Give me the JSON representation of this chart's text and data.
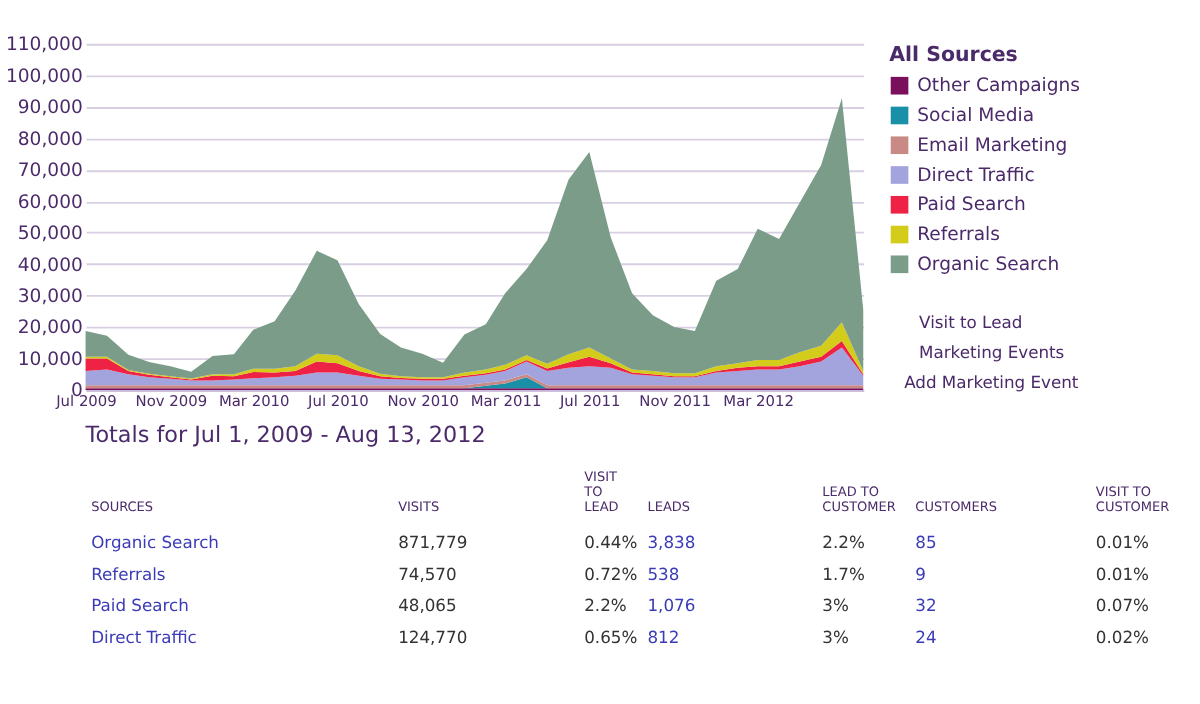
{
  "chart_data": {
    "type": "area",
    "stacked": true,
    "legend": "right",
    "legend_title": "All Sources",
    "grid": "y",
    "x": [
      "2009-07",
      "2009-08",
      "2009-09",
      "2009-10",
      "2009-11",
      "2009-12",
      "2010-01",
      "2010-02",
      "2010-03",
      "2010-04",
      "2010-05",
      "2010-06",
      "2010-07",
      "2010-08",
      "2010-09",
      "2010-10",
      "2010-11",
      "2010-12",
      "2011-01",
      "2011-02",
      "2011-03",
      "2011-04",
      "2011-05",
      "2011-06",
      "2011-07",
      "2011-08",
      "2011-09",
      "2011-10",
      "2011-11",
      "2011-12",
      "2012-01",
      "2012-02",
      "2012-03",
      "2012-04",
      "2012-05",
      "2012-06",
      "2012-07",
      "2012-08"
    ],
    "xlim": [
      "2009-07",
      "2012-08"
    ],
    "xticks": [
      {
        "value": "2009-07",
        "label": "Jul 2009"
      },
      {
        "value": "2009-11",
        "label": "Nov 2009"
      },
      {
        "value": "2010-03",
        "label": "Mar 2010"
      },
      {
        "value": "2010-07",
        "label": "Jul 2010"
      },
      {
        "value": "2010-11",
        "label": "Nov 2010"
      },
      {
        "value": "2011-03",
        "label": "Mar 2011"
      },
      {
        "value": "2011-07",
        "label": "Jul 2011"
      },
      {
        "value": "2011-11",
        "label": "Nov 2011"
      },
      {
        "value": "2012-03",
        "label": "Mar 2012"
      }
    ],
    "ylim": [
      0,
      110000
    ],
    "yticks": [
      {
        "value": 0,
        "label": "0"
      },
      {
        "value": 10000,
        "label": "10,000"
      },
      {
        "value": 20000,
        "label": "20,000"
      },
      {
        "value": 30000,
        "label": "30,000"
      },
      {
        "value": 40000,
        "label": "40,000"
      },
      {
        "value": 50000,
        "label": "50,000"
      },
      {
        "value": 60000,
        "label": "60,000"
      },
      {
        "value": 70000,
        "label": "70,000"
      },
      {
        "value": 80000,
        "label": "80,000"
      },
      {
        "value": 90000,
        "label": "90,000"
      },
      {
        "value": 100000,
        "label": "100,000"
      },
      {
        "value": 110000,
        "label": "110,000"
      }
    ],
    "series": [
      {
        "name": "Other Campaigns",
        "color": "#7a0f5c",
        "values": [
          500,
          500,
          500,
          500,
          500,
          500,
          500,
          500,
          500,
          500,
          500,
          500,
          500,
          500,
          500,
          500,
          500,
          500,
          500,
          500,
          500,
          500,
          500,
          500,
          500,
          500,
          500,
          500,
          500,
          500,
          500,
          500,
          500,
          500,
          500,
          500,
          500,
          500
        ]
      },
      {
        "name": "Social Media",
        "color": "#1a90a8",
        "values": [
          0,
          0,
          0,
          0,
          0,
          0,
          0,
          0,
          0,
          0,
          0,
          0,
          0,
          0,
          0,
          0,
          0,
          0,
          0,
          800,
          1500,
          3500,
          0,
          0,
          0,
          0,
          0,
          0,
          0,
          0,
          0,
          0,
          0,
          0,
          0,
          0,
          0,
          0
        ]
      },
      {
        "name": "Email Marketing",
        "color": "#c98a85",
        "values": [
          1000,
          1000,
          1000,
          1000,
          1000,
          1000,
          1000,
          1000,
          1000,
          1000,
          1000,
          1000,
          1000,
          1000,
          1000,
          1000,
          1000,
          1000,
          1000,
          1000,
          1000,
          1000,
          1000,
          1000,
          1000,
          1000,
          1000,
          1000,
          1000,
          1000,
          1000,
          1000,
          1000,
          1000,
          1000,
          1000,
          1000,
          1000
        ]
      },
      {
        "name": "Direct Traffic",
        "color": "#a3a3dd",
        "values": [
          4500,
          5000,
          3500,
          2500,
          2000,
          1500,
          1500,
          1800,
          2200,
          2500,
          3000,
          4000,
          4000,
          3000,
          2000,
          1800,
          1500,
          1500,
          2500,
          2500,
          3000,
          4000,
          4500,
          5500,
          6000,
          5500,
          3500,
          3000,
          2500,
          2500,
          4000,
          4500,
          5000,
          5000,
          6000,
          7500,
          12000,
          3000
        ]
      },
      {
        "name": "Paid Search",
        "color": "#ee2244",
        "values": [
          4000,
          3500,
          1000,
          800,
          500,
          300,
          1500,
          1000,
          2000,
          1500,
          1500,
          3500,
          3000,
          1500,
          800,
          500,
          500,
          500,
          500,
          500,
          500,
          500,
          800,
          1800,
          3000,
          1500,
          500,
          500,
          300,
          300,
          500,
          1000,
          1000,
          1000,
          1500,
          1500,
          2000,
          500
        ]
      },
      {
        "name": "Referrals",
        "color": "#d4cc1a",
        "values": [
          500,
          500,
          300,
          300,
          300,
          300,
          500,
          700,
          1000,
          1200,
          1500,
          2500,
          2500,
          1500,
          800,
          500,
          500,
          500,
          1000,
          1200,
          1500,
          1500,
          1500,
          2500,
          3000,
          1500,
          1000,
          1000,
          1000,
          1000,
          1500,
          1500,
          2000,
          2000,
          3000,
          3500,
          6000,
          1000
        ]
      },
      {
        "name": "Organic Search",
        "color": "#7a9c88",
        "values": [
          8200,
          6700,
          4900,
          3800,
          3200,
          2200,
          5800,
          6300,
          12400,
          15100,
          24100,
          32700,
          30200,
          19700,
          12700,
          9200,
          7500,
          4600,
          12100,
          14400,
          22700,
          27400,
          39300,
          55600,
          62100,
          38500,
          24200,
          17700,
          14700,
          13400,
          27200,
          29900,
          41700,
          38500,
          47600,
          57500,
          71200,
          19500
        ]
      }
    ],
    "annotations": [
      "Visit to Lead",
      "Marketing Events",
      "Add Marketing Event",
      "Totals for Jul 1, 2009 - Aug 13, 2012",
      "SOURCES",
      "VISITS",
      "VISIT\nTO\nLEAD",
      "LEADS",
      "LEAD TO\nCUSTOMER",
      "CUSTOMERS",
      "VISIT TO\nCUSTOMER",
      "Organic Search",
      "871,779",
      "0.44%",
      "3,838",
      "2.2%",
      "85",
      "0.01%",
      "Referrals",
      "74,570",
      "0.72%",
      "538",
      "1.7%",
      "9",
      "0.01%",
      "Paid Search",
      "48,065",
      "2.2%",
      "1,076",
      "3%",
      "32",
      "0.07%",
      "Direct Traffic",
      "124,770",
      "0.65%",
      "812",
      "3%",
      "24",
      "0.02%"
    ]
  }
}
